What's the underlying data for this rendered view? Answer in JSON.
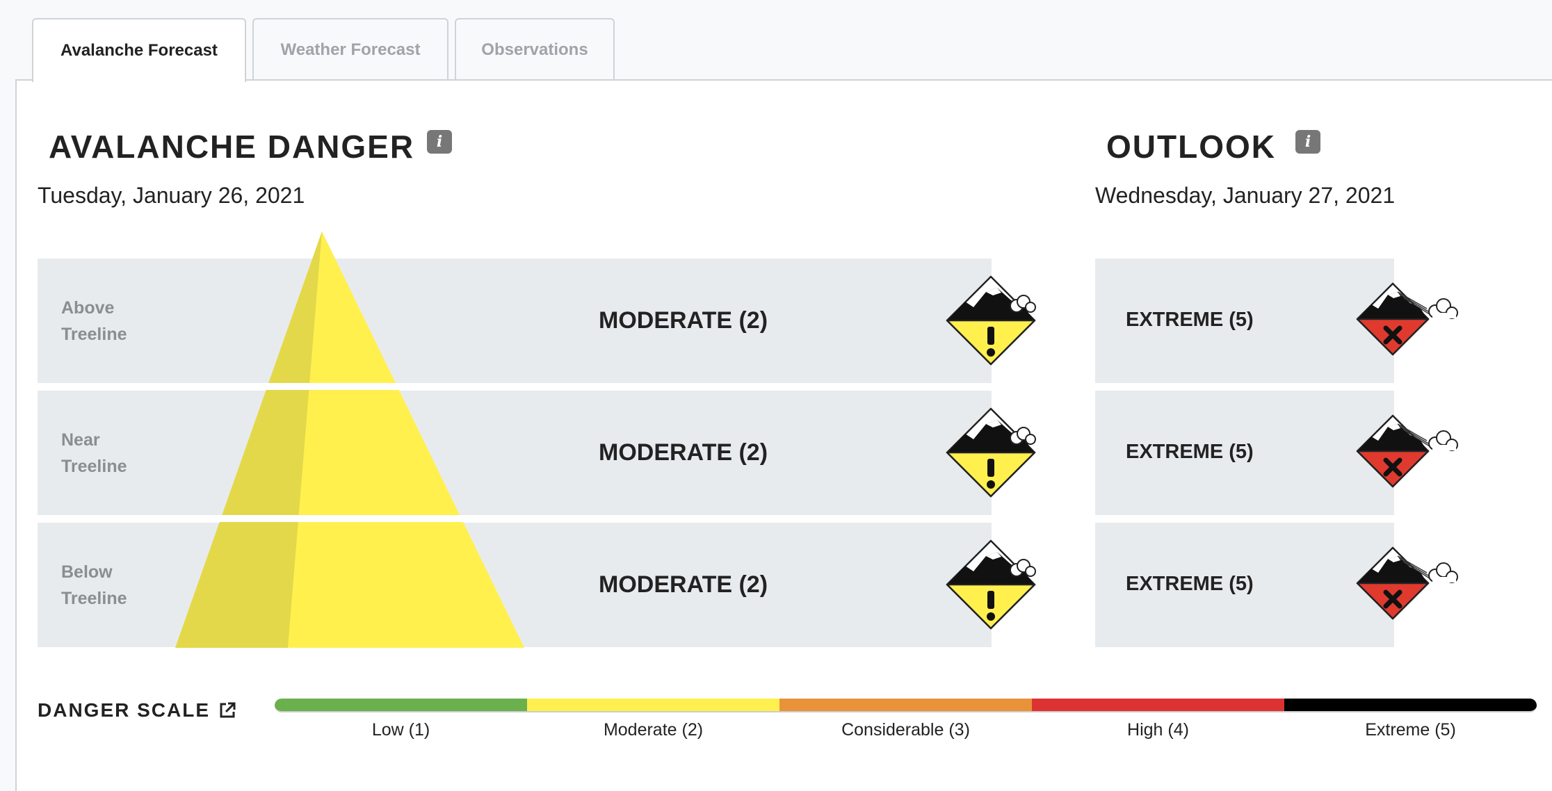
{
  "tabs": [
    {
      "label": "Avalanche Forecast",
      "active": true
    },
    {
      "label": "Weather Forecast",
      "active": false
    },
    {
      "label": "Observations",
      "active": false
    }
  ],
  "danger": {
    "title": "AVALANCHE DANGER",
    "info_glyph": "i",
    "date": "Tuesday, January 26, 2021",
    "rows": [
      {
        "label_line1": "Above",
        "label_line2": "Treeline",
        "rating": "MODERATE (2)",
        "level": 2
      },
      {
        "label_line1": "Near",
        "label_line2": "Treeline",
        "rating": "MODERATE (2)",
        "level": 2
      },
      {
        "label_line1": "Below",
        "label_line2": "Treeline",
        "rating": "MODERATE (2)",
        "level": 2
      }
    ]
  },
  "outlook": {
    "title": "OUTLOOK",
    "info_glyph": "i",
    "date": "Wednesday, January 27, 2021",
    "rows": [
      {
        "rating": "EXTREME (5)",
        "level": 5
      },
      {
        "rating": "EXTREME (5)",
        "level": 5
      },
      {
        "rating": "EXTREME (5)",
        "level": 5
      }
    ]
  },
  "scale": {
    "title": "DANGER SCALE",
    "levels": [
      {
        "label": "Low (1)",
        "color": "#6ab04c"
      },
      {
        "label": "Moderate (2)",
        "color": "#fff04e"
      },
      {
        "label": "Considerable (3)",
        "color": "#e8923a"
      },
      {
        "label": "High (4)",
        "color": "#dc3232"
      },
      {
        "label": "Extreme (5)",
        "color": "#000000"
      }
    ]
  },
  "colors": {
    "moderate": "#fff04e",
    "moderate_shade": "#e3d84a",
    "extreme": "#e03a2f",
    "row_bg": "#e8ebee"
  },
  "icons": {
    "moderate": "moderate-danger-icon",
    "extreme": "extreme-danger-icon",
    "info": "info-icon",
    "external": "external-link-icon"
  }
}
